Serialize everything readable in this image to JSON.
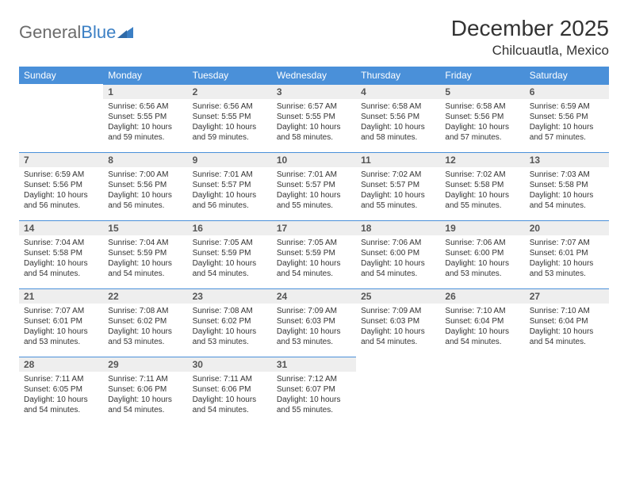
{
  "brand": {
    "part1": "General",
    "part2": "Blue"
  },
  "title": "December 2025",
  "location": "Chilcuautla, Mexico",
  "colors": {
    "header_bg": "#4a90d9",
    "header_text": "#ffffff",
    "daynum_bg": "#eeeeee",
    "border": "#4a90d9",
    "text": "#333333",
    "logo_gray": "#6b6b6b",
    "logo_blue": "#3b7fc4"
  },
  "weekdays": [
    "Sunday",
    "Monday",
    "Tuesday",
    "Wednesday",
    "Thursday",
    "Friday",
    "Saturday"
  ],
  "weeks": [
    [
      {
        "n": "",
        "sr": "",
        "ss": "",
        "dl": ""
      },
      {
        "n": "1",
        "sr": "Sunrise: 6:56 AM",
        "ss": "Sunset: 5:55 PM",
        "dl": "Daylight: 10 hours and 59 minutes."
      },
      {
        "n": "2",
        "sr": "Sunrise: 6:56 AM",
        "ss": "Sunset: 5:55 PM",
        "dl": "Daylight: 10 hours and 59 minutes."
      },
      {
        "n": "3",
        "sr": "Sunrise: 6:57 AM",
        "ss": "Sunset: 5:55 PM",
        "dl": "Daylight: 10 hours and 58 minutes."
      },
      {
        "n": "4",
        "sr": "Sunrise: 6:58 AM",
        "ss": "Sunset: 5:56 PM",
        "dl": "Daylight: 10 hours and 58 minutes."
      },
      {
        "n": "5",
        "sr": "Sunrise: 6:58 AM",
        "ss": "Sunset: 5:56 PM",
        "dl": "Daylight: 10 hours and 57 minutes."
      },
      {
        "n": "6",
        "sr": "Sunrise: 6:59 AM",
        "ss": "Sunset: 5:56 PM",
        "dl": "Daylight: 10 hours and 57 minutes."
      }
    ],
    [
      {
        "n": "7",
        "sr": "Sunrise: 6:59 AM",
        "ss": "Sunset: 5:56 PM",
        "dl": "Daylight: 10 hours and 56 minutes."
      },
      {
        "n": "8",
        "sr": "Sunrise: 7:00 AM",
        "ss": "Sunset: 5:56 PM",
        "dl": "Daylight: 10 hours and 56 minutes."
      },
      {
        "n": "9",
        "sr": "Sunrise: 7:01 AM",
        "ss": "Sunset: 5:57 PM",
        "dl": "Daylight: 10 hours and 56 minutes."
      },
      {
        "n": "10",
        "sr": "Sunrise: 7:01 AM",
        "ss": "Sunset: 5:57 PM",
        "dl": "Daylight: 10 hours and 55 minutes."
      },
      {
        "n": "11",
        "sr": "Sunrise: 7:02 AM",
        "ss": "Sunset: 5:57 PM",
        "dl": "Daylight: 10 hours and 55 minutes."
      },
      {
        "n": "12",
        "sr": "Sunrise: 7:02 AM",
        "ss": "Sunset: 5:58 PM",
        "dl": "Daylight: 10 hours and 55 minutes."
      },
      {
        "n": "13",
        "sr": "Sunrise: 7:03 AM",
        "ss": "Sunset: 5:58 PM",
        "dl": "Daylight: 10 hours and 54 minutes."
      }
    ],
    [
      {
        "n": "14",
        "sr": "Sunrise: 7:04 AM",
        "ss": "Sunset: 5:58 PM",
        "dl": "Daylight: 10 hours and 54 minutes."
      },
      {
        "n": "15",
        "sr": "Sunrise: 7:04 AM",
        "ss": "Sunset: 5:59 PM",
        "dl": "Daylight: 10 hours and 54 minutes."
      },
      {
        "n": "16",
        "sr": "Sunrise: 7:05 AM",
        "ss": "Sunset: 5:59 PM",
        "dl": "Daylight: 10 hours and 54 minutes."
      },
      {
        "n": "17",
        "sr": "Sunrise: 7:05 AM",
        "ss": "Sunset: 5:59 PM",
        "dl": "Daylight: 10 hours and 54 minutes."
      },
      {
        "n": "18",
        "sr": "Sunrise: 7:06 AM",
        "ss": "Sunset: 6:00 PM",
        "dl": "Daylight: 10 hours and 54 minutes."
      },
      {
        "n": "19",
        "sr": "Sunrise: 7:06 AM",
        "ss": "Sunset: 6:00 PM",
        "dl": "Daylight: 10 hours and 53 minutes."
      },
      {
        "n": "20",
        "sr": "Sunrise: 7:07 AM",
        "ss": "Sunset: 6:01 PM",
        "dl": "Daylight: 10 hours and 53 minutes."
      }
    ],
    [
      {
        "n": "21",
        "sr": "Sunrise: 7:07 AM",
        "ss": "Sunset: 6:01 PM",
        "dl": "Daylight: 10 hours and 53 minutes."
      },
      {
        "n": "22",
        "sr": "Sunrise: 7:08 AM",
        "ss": "Sunset: 6:02 PM",
        "dl": "Daylight: 10 hours and 53 minutes."
      },
      {
        "n": "23",
        "sr": "Sunrise: 7:08 AM",
        "ss": "Sunset: 6:02 PM",
        "dl": "Daylight: 10 hours and 53 minutes."
      },
      {
        "n": "24",
        "sr": "Sunrise: 7:09 AM",
        "ss": "Sunset: 6:03 PM",
        "dl": "Daylight: 10 hours and 53 minutes."
      },
      {
        "n": "25",
        "sr": "Sunrise: 7:09 AM",
        "ss": "Sunset: 6:03 PM",
        "dl": "Daylight: 10 hours and 54 minutes."
      },
      {
        "n": "26",
        "sr": "Sunrise: 7:10 AM",
        "ss": "Sunset: 6:04 PM",
        "dl": "Daylight: 10 hours and 54 minutes."
      },
      {
        "n": "27",
        "sr": "Sunrise: 7:10 AM",
        "ss": "Sunset: 6:04 PM",
        "dl": "Daylight: 10 hours and 54 minutes."
      }
    ],
    [
      {
        "n": "28",
        "sr": "Sunrise: 7:11 AM",
        "ss": "Sunset: 6:05 PM",
        "dl": "Daylight: 10 hours and 54 minutes."
      },
      {
        "n": "29",
        "sr": "Sunrise: 7:11 AM",
        "ss": "Sunset: 6:06 PM",
        "dl": "Daylight: 10 hours and 54 minutes."
      },
      {
        "n": "30",
        "sr": "Sunrise: 7:11 AM",
        "ss": "Sunset: 6:06 PM",
        "dl": "Daylight: 10 hours and 54 minutes."
      },
      {
        "n": "31",
        "sr": "Sunrise: 7:12 AM",
        "ss": "Sunset: 6:07 PM",
        "dl": "Daylight: 10 hours and 55 minutes."
      },
      {
        "n": "",
        "sr": "",
        "ss": "",
        "dl": ""
      },
      {
        "n": "",
        "sr": "",
        "ss": "",
        "dl": ""
      },
      {
        "n": "",
        "sr": "",
        "ss": "",
        "dl": ""
      }
    ]
  ]
}
